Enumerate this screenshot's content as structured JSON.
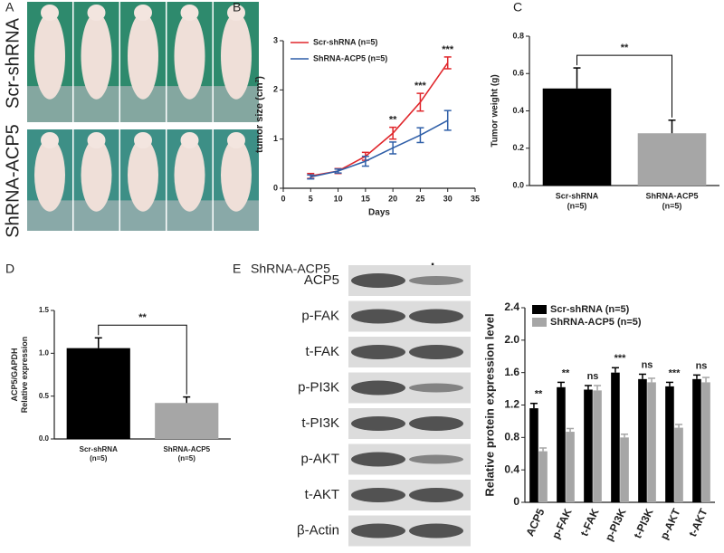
{
  "photo_panel": {
    "panel_label": "A",
    "rows": [
      "Scr-shRNA",
      "ShRNA-ACP5"
    ]
  },
  "blot_panel": {
    "panel_label": "E",
    "treatment": "ShRNA-ACP5",
    "conditions": [
      "−",
      "+"
    ],
    "proteins": [
      "ACP5",
      "p-FAK",
      "t-FAK",
      "p-PI3K",
      "t-PI3K",
      "p-AKT",
      "t-AKT",
      "β-Actin"
    ]
  },
  "chart_data": [
    {
      "type": "line",
      "panel_label": "B",
      "x_label": "Days",
      "y_label": "tumor size (cm²)",
      "x": [
        5,
        10,
        15,
        20,
        25,
        30
      ],
      "series": [
        {
          "name": "Scr-shRNA (n=5)",
          "color": "#e0262b",
          "values": [
            0.25,
            0.35,
            0.65,
            1.12,
            1.75,
            2.55
          ],
          "errors": [
            0.05,
            0.05,
            0.08,
            0.12,
            0.18,
            0.12
          ]
        },
        {
          "name": "ShRNA-ACP5 (n=5)",
          "color": "#2f5fa8",
          "values": [
            0.23,
            0.35,
            0.55,
            0.82,
            1.08,
            1.38
          ],
          "errors": [
            0.04,
            0.04,
            0.1,
            0.12,
            0.15,
            0.2
          ]
        }
      ],
      "annotations": [
        {
          "x": 20,
          "label": "**"
        },
        {
          "x": 25,
          "label": "***"
        },
        {
          "x": 30,
          "label": "***"
        }
      ],
      "xlim": [
        0,
        35
      ],
      "xticks": [
        0,
        5,
        10,
        15,
        20,
        25,
        30,
        35
      ],
      "ylim": [
        0,
        3
      ],
      "yticks": [
        0,
        1,
        2,
        3
      ],
      "legend": "upper-left"
    },
    {
      "type": "bar",
      "panel_label": "C",
      "y_label": [
        "Tumor weight (g)"
      ],
      "categories": [
        [
          "Scr-shRNA",
          "(n=5)"
        ],
        [
          "ShRNA-ACP5",
          "(n=5)"
        ]
      ],
      "values": [
        0.52,
        0.28
      ],
      "errors": [
        0.11,
        0.07
      ],
      "colors": [
        "#000000",
        "#a6a6a6"
      ],
      "significance": "**",
      "ylim": [
        0,
        0.8
      ],
      "yticks": [
        {
          "value": 0,
          "label": "0.0"
        },
        0.2,
        0.4,
        0.6,
        0.8
      ]
    },
    {
      "type": "bar",
      "panel_label": "D",
      "y_label": [
        "ACP5/GAPDH",
        "Relative  expression"
      ],
      "categories": [
        [
          "Scr-shRNA",
          "(n=5)"
        ],
        [
          "ShRNA-ACP5",
          "(n=5)"
        ]
      ],
      "values": [
        1.06,
        0.42
      ],
      "errors": [
        0.12,
        0.07
      ],
      "colors": [
        "#000000",
        "#a6a6a6"
      ],
      "significance": "**",
      "ylim": [
        0,
        1.5
      ],
      "yticks": [
        {
          "value": 0,
          "label": "0.0"
        },
        0.5,
        {
          "value": 1,
          "label": "1.0"
        },
        1.5
      ]
    },
    {
      "type": "grouped-bar",
      "y_label": [
        "Relative protein expression level"
      ],
      "categories": [
        "ACP5",
        "p-FAK",
        "t-FAK",
        "p-PI3K",
        "t-PI3K",
        "p-AKT",
        "t-AKT"
      ],
      "series": [
        {
          "name": "Scr-shRNA (n=5)",
          "color": "#000000",
          "values": [
            1.16,
            1.42,
            1.39,
            1.6,
            1.52,
            1.43,
            1.52
          ],
          "errors": [
            0.06,
            0.06,
            0.05,
            0.06,
            0.06,
            0.05,
            0.05
          ]
        },
        {
          "name": "ShRNA-ACP5 (n=5)",
          "color": "#a6a6a6",
          "values": [
            0.63,
            0.87,
            1.38,
            0.8,
            1.48,
            0.92,
            1.48
          ],
          "errors": [
            0.04,
            0.04,
            0.06,
            0.04,
            0.05,
            0.04,
            0.06
          ]
        }
      ],
      "annotations": [
        "**",
        "**",
        "ns",
        "***",
        "ns",
        "***",
        "ns"
      ],
      "ylim": [
        0,
        2.4
      ],
      "yticks": [
        0,
        0.4,
        0.8,
        1.2,
        1.6,
        {
          "value": 2,
          "label": "2.0"
        },
        2.4
      ],
      "legend": "upper-left"
    }
  ]
}
